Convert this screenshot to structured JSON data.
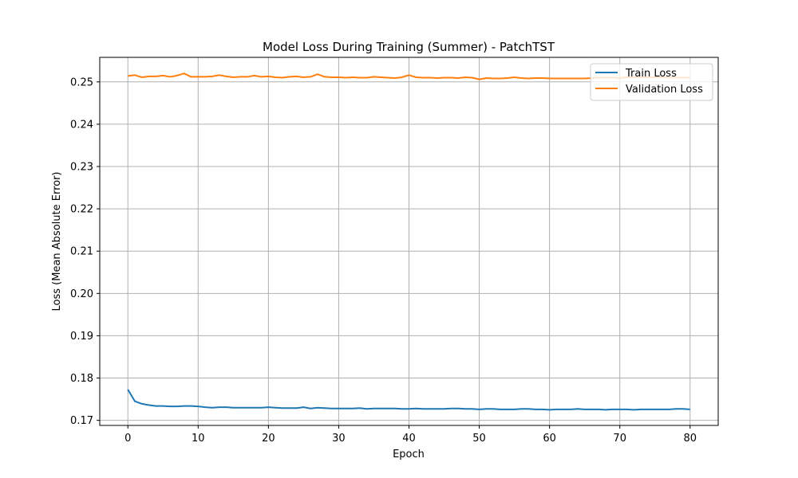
{
  "chart_data": {
    "type": "line",
    "title": "Model Loss During Training (Summer) - PatchTST",
    "xlabel": "Epoch",
    "ylabel": "Loss (Mean Absolute Error)",
    "xlim": [
      -4,
      84
    ],
    "ylim": [
      0.1688,
      0.2558
    ],
    "xticks": [
      0,
      10,
      20,
      30,
      40,
      50,
      60,
      70,
      80
    ],
    "yticks": [
      0.17,
      0.18,
      0.19,
      0.2,
      0.21,
      0.22,
      0.23,
      0.24,
      0.25
    ],
    "xtick_labels": [
      "0",
      "10",
      "20",
      "30",
      "40",
      "50",
      "60",
      "70",
      "80"
    ],
    "ytick_labels": [
      "0.17",
      "0.18",
      "0.19",
      "0.20",
      "0.21",
      "0.22",
      "0.23",
      "0.24",
      "0.25"
    ],
    "grid": true,
    "legend_position": "top-right",
    "series": [
      {
        "name": "Train Loss",
        "color": "#1f77b4",
        "x": [
          0,
          1,
          2,
          3,
          4,
          5,
          6,
          7,
          8,
          9,
          10,
          11,
          12,
          13,
          14,
          15,
          16,
          17,
          18,
          19,
          20,
          21,
          22,
          23,
          24,
          25,
          26,
          27,
          28,
          29,
          30,
          31,
          32,
          33,
          34,
          35,
          36,
          37,
          38,
          39,
          40,
          41,
          42,
          43,
          44,
          45,
          46,
          47,
          48,
          49,
          50,
          51,
          52,
          53,
          54,
          55,
          56,
          57,
          58,
          59,
          60,
          61,
          62,
          63,
          64,
          65,
          66,
          67,
          68,
          69,
          70,
          71,
          72,
          73,
          74,
          75,
          76,
          77,
          78,
          79,
          80
        ],
        "values": [
          0.1773,
          0.1745,
          0.1739,
          0.1736,
          0.1734,
          0.1734,
          0.1733,
          0.1733,
          0.1734,
          0.1734,
          0.1733,
          0.1731,
          0.173,
          0.1731,
          0.1731,
          0.173,
          0.173,
          0.173,
          0.173,
          0.173,
          0.1731,
          0.173,
          0.1729,
          0.1729,
          0.1729,
          0.1731,
          0.1728,
          0.173,
          0.1729,
          0.1728,
          0.1728,
          0.1728,
          0.1728,
          0.1729,
          0.1727,
          0.1728,
          0.1728,
          0.1728,
          0.1728,
          0.1727,
          0.1727,
          0.1728,
          0.1727,
          0.1727,
          0.1727,
          0.1727,
          0.1728,
          0.1728,
          0.1727,
          0.1727,
          0.1726,
          0.1727,
          0.1727,
          0.1726,
          0.1726,
          0.1726,
          0.1727,
          0.1727,
          0.1726,
          0.1726,
          0.1725,
          0.1726,
          0.1726,
          0.1726,
          0.1727,
          0.1726,
          0.1726,
          0.1726,
          0.1725,
          0.1726,
          0.1726,
          0.1726,
          0.1725,
          0.1726,
          0.1726,
          0.1726,
          0.1726,
          0.1726,
          0.1727,
          0.1727,
          0.1726
        ]
      },
      {
        "name": "Validation Loss",
        "color": "#ff7f0e",
        "x": [
          0,
          1,
          2,
          3,
          4,
          5,
          6,
          7,
          8,
          9,
          10,
          11,
          12,
          13,
          14,
          15,
          16,
          17,
          18,
          19,
          20,
          21,
          22,
          23,
          24,
          25,
          26,
          27,
          28,
          29,
          30,
          31,
          32,
          33,
          34,
          35,
          36,
          37,
          38,
          39,
          40,
          41,
          42,
          43,
          44,
          45,
          46,
          47,
          48,
          49,
          50,
          51,
          52,
          53,
          54,
          55,
          56,
          57,
          58,
          59,
          60,
          61,
          62,
          63,
          64,
          65,
          66,
          67,
          68,
          69,
          70,
          71,
          72,
          73,
          74,
          75,
          76,
          77,
          78,
          79,
          80
        ],
        "values": [
          0.2514,
          0.2516,
          0.2511,
          0.2513,
          0.2513,
          0.2515,
          0.2512,
          0.2515,
          0.252,
          0.2512,
          0.2512,
          0.2512,
          0.2513,
          0.2516,
          0.2513,
          0.2511,
          0.2512,
          0.2512,
          0.2515,
          0.2512,
          0.2513,
          0.2511,
          0.251,
          0.2512,
          0.2513,
          0.2511,
          0.2512,
          0.2518,
          0.2512,
          0.2511,
          0.2511,
          0.251,
          0.2511,
          0.251,
          0.251,
          0.2512,
          0.2511,
          0.251,
          0.2509,
          0.2511,
          0.2516,
          0.2511,
          0.251,
          0.251,
          0.2509,
          0.251,
          0.251,
          0.2509,
          0.2511,
          0.251,
          0.2506,
          0.2509,
          0.2508,
          0.2508,
          0.2509,
          0.2511,
          0.2509,
          0.2508,
          0.2509,
          0.2509,
          0.2508,
          0.2508,
          0.2508,
          0.2508,
          0.2508,
          0.2508,
          0.2509,
          0.251,
          0.251,
          0.251,
          0.2509,
          0.2511,
          0.2511,
          0.2511,
          0.2511,
          0.2511,
          0.2511,
          0.251,
          0.251,
          0.251,
          0.251
        ]
      }
    ]
  }
}
